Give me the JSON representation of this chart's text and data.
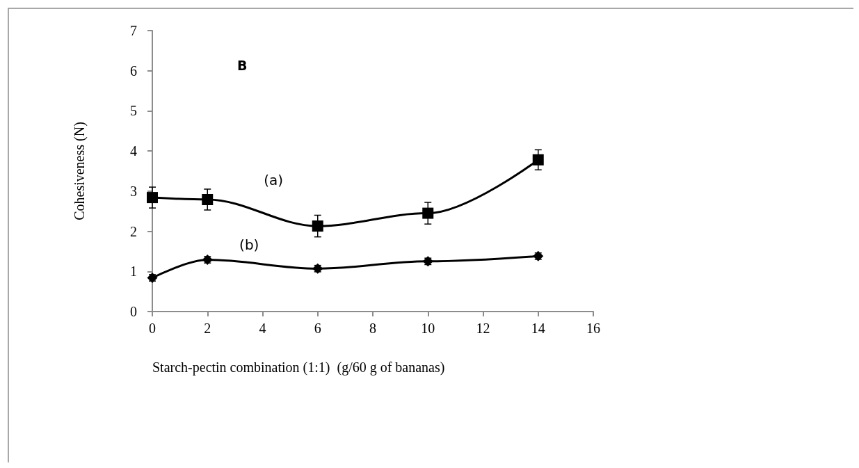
{
  "chart_data": {
    "type": "line",
    "xlabel": "Starch-pectin combination (1:1)  (g/60 g of bananas)",
    "ylabel": "Cohesiveness (N)",
    "x": [
      0,
      2,
      6,
      10,
      14
    ],
    "series": [
      {
        "name": "(a)",
        "color": "#000000",
        "marker": "square",
        "values": [
          2.84,
          2.79,
          2.13,
          2.45,
          3.78
        ],
        "errors": [
          0.26,
          0.26,
          0.27,
          0.27,
          0.25
        ]
      },
      {
        "name": "(b)",
        "color": "#000000",
        "marker": "diamond",
        "values": [
          0.84,
          1.29,
          1.07,
          1.25,
          1.38
        ],
        "errors": [
          0.08,
          0.08,
          0.08,
          0.08,
          0.08
        ]
      }
    ],
    "xlim": [
      0,
      16
    ],
    "xticks": [
      0,
      2,
      4,
      6,
      8,
      10,
      12,
      14,
      16
    ],
    "ylim": [
      0,
      7
    ],
    "yticks": [
      0,
      1,
      2,
      3,
      4,
      5,
      6,
      7
    ],
    "grid": false,
    "legend": false,
    "line_style": "solid",
    "annotations": [
      "B"
    ]
  }
}
